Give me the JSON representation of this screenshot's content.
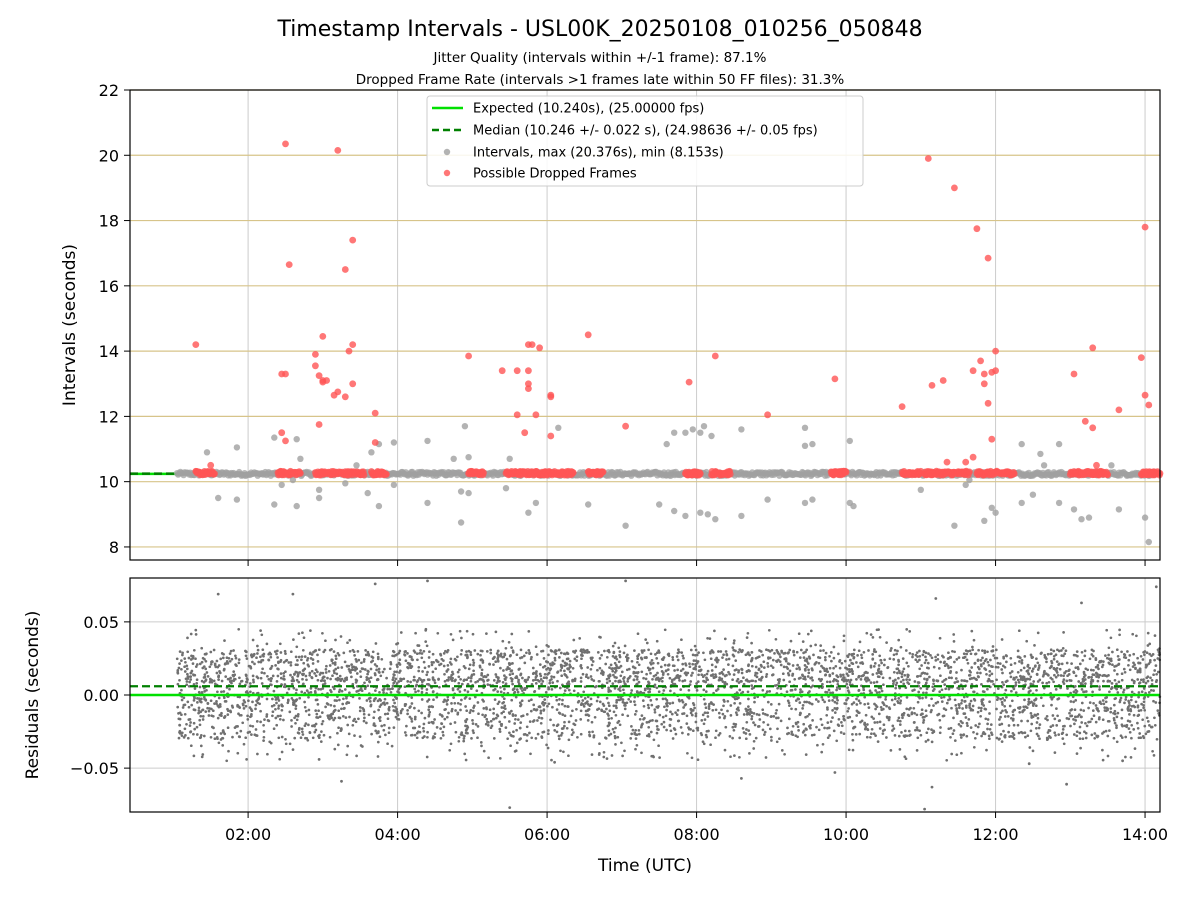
{
  "chart_data": [
    {
      "type": "scatter",
      "title": "Timestamp Intervals - USL00K_20250108_010256_050848",
      "subtitle_lines": [
        "Jitter Quality (intervals within +/-1 frame): 87.1%",
        "Dropped Frame Rate (intervals >1 frames late within 50 FF files): 31.3%"
      ],
      "xlabel": "",
      "ylabel": "Intervals (seconds)",
      "x_unit": "hours UTC",
      "xlim": [
        0.42,
        14.2
      ],
      "ylim": [
        7.6,
        22
      ],
      "yticks": [
        8,
        10,
        12,
        14,
        16,
        18,
        20,
        22
      ],
      "ytick_labels": [
        "8",
        "10",
        "12",
        "14",
        "16",
        "18",
        "20",
        "22"
      ],
      "xticks": [
        2,
        4,
        6,
        8,
        10,
        12,
        14
      ],
      "grid": true,
      "grid_x_color": "#cccccc",
      "grid_y_color": "#d7c48a",
      "legend_placement": "upper-center",
      "expected_line": {
        "y": 10.24,
        "color": "#00e000"
      },
      "median_line": {
        "y": 10.246,
        "color": "#008000",
        "style": "dashed"
      },
      "legend": [
        {
          "label": "Expected (10.240s), (25.00000 fps)",
          "kind": "solid-line",
          "color": "#00e000"
        },
        {
          "label": "Median (10.246 +/- 0.022 s), (24.98636 +/- 0.05 fps)",
          "kind": "dashed-line",
          "color": "#008000"
        },
        {
          "label": "Intervals, max (20.376s), min (8.153s)",
          "kind": "marker",
          "color": "#a0a0a0"
        },
        {
          "label": "Possible Dropped Frames",
          "kind": "marker",
          "color": "#ff5555"
        }
      ],
      "series": [
        {
          "role": "intervals",
          "color": "#a0a0a0",
          "x_range": [
            1.05,
            14.15
          ],
          "baseline": 10.24,
          "outliers": [
            [
              1.45,
              10.9
            ],
            [
              1.6,
              9.5
            ],
            [
              1.85,
              11.05
            ],
            [
              1.85,
              9.45
            ],
            [
              2.35,
              9.3
            ],
            [
              2.35,
              11.35
            ],
            [
              2.45,
              9.9
            ],
            [
              2.6,
              10.05
            ],
            [
              2.65,
              11.3
            ],
            [
              2.65,
              9.25
            ],
            [
              2.7,
              10.7
            ],
            [
              2.95,
              9.5
            ],
            [
              2.95,
              9.75
            ],
            [
              3.3,
              9.95
            ],
            [
              3.45,
              10.5
            ],
            [
              3.6,
              9.65
            ],
            [
              3.65,
              10.9
            ],
            [
              3.75,
              9.25
            ],
            [
              3.75,
              11.15
            ],
            [
              3.95,
              11.2
            ],
            [
              3.95,
              9.9
            ],
            [
              4.4,
              11.25
            ],
            [
              4.4,
              9.35
            ],
            [
              4.75,
              10.7
            ],
            [
              4.85,
              9.7
            ],
            [
              4.85,
              8.75
            ],
            [
              4.9,
              11.7
            ],
            [
              4.95,
              10.75
            ],
            [
              4.95,
              9.65
            ],
            [
              5.45,
              9.8
            ],
            [
              5.5,
              10.7
            ],
            [
              5.75,
              9.05
            ],
            [
              5.85,
              9.35
            ],
            [
              6.15,
              11.65
            ],
            [
              6.55,
              9.3
            ],
            [
              7.05,
              8.65
            ],
            [
              7.5,
              9.3
            ],
            [
              7.6,
              11.15
            ],
            [
              7.7,
              11.5
            ],
            [
              7.7,
              9.1
            ],
            [
              7.85,
              11.5
            ],
            [
              7.85,
              8.95
            ],
            [
              7.95,
              11.6
            ],
            [
              8.05,
              11.5
            ],
            [
              8.05,
              9.05
            ],
            [
              8.1,
              11.7
            ],
            [
              8.15,
              9.0
            ],
            [
              8.2,
              11.4
            ],
            [
              8.25,
              8.85
            ],
            [
              8.6,
              11.6
            ],
            [
              8.6,
              8.95
            ],
            [
              8.95,
              9.45
            ],
            [
              9.45,
              11.65
            ],
            [
              9.45,
              11.1
            ],
            [
              9.45,
              9.35
            ],
            [
              9.55,
              9.45
            ],
            [
              9.55,
              11.15
            ],
            [
              10.05,
              11.25
            ],
            [
              10.05,
              9.35
            ],
            [
              10.1,
              9.25
            ],
            [
              11.0,
              9.75
            ],
            [
              11.45,
              8.65
            ],
            [
              11.6,
              9.9
            ],
            [
              11.65,
              10.05
            ],
            [
              11.85,
              8.8
            ],
            [
              11.95,
              9.2
            ],
            [
              12.0,
              9.05
            ],
            [
              12.35,
              11.15
            ],
            [
              12.35,
              9.35
            ],
            [
              12.5,
              9.6
            ],
            [
              12.6,
              10.85
            ],
            [
              12.65,
              10.5
            ],
            [
              12.85,
              11.15
            ],
            [
              12.85,
              9.35
            ],
            [
              13.05,
              9.15
            ],
            [
              13.15,
              8.85
            ],
            [
              13.25,
              8.9
            ],
            [
              13.55,
              10.5
            ],
            [
              13.65,
              9.15
            ],
            [
              14.0,
              8.9
            ],
            [
              14.05,
              8.15
            ]
          ]
        },
        {
          "role": "possible-dropped-frames",
          "color": "#ff5555",
          "clusters": [
            [
              1.3,
              1.55
            ],
            [
              2.4,
              2.7
            ],
            [
              2.9,
              3.55
            ],
            [
              3.65,
              3.85
            ],
            [
              4.95,
              5.15
            ],
            [
              5.45,
              6.35
            ],
            [
              6.55,
              6.75
            ],
            [
              7.85,
              8.05
            ],
            [
              8.2,
              8.45
            ],
            [
              9.8,
              10.0
            ],
            [
              10.75,
              11.0
            ],
            [
              11.05,
              11.65
            ],
            [
              11.75,
              12.25
            ],
            [
              13.0,
              13.5
            ],
            [
              13.95,
              14.2
            ]
          ],
          "cluster_y": 10.26,
          "outliers": [
            [
              1.3,
              14.2
            ],
            [
              1.5,
              10.5
            ],
            [
              2.45,
              13.3
            ],
            [
              2.45,
              11.5
            ],
            [
              2.5,
              11.25
            ],
            [
              2.5,
              13.3
            ],
            [
              2.5,
              20.35
            ],
            [
              2.55,
              16.65
            ],
            [
              2.9,
              13.9
            ],
            [
              2.9,
              13.55
            ],
            [
              2.95,
              13.25
            ],
            [
              2.95,
              11.75
            ],
            [
              3.0,
              13.1
            ],
            [
              3.0,
              13.05
            ],
            [
              3.0,
              14.45
            ],
            [
              3.05,
              13.1
            ],
            [
              3.15,
              12.65
            ],
            [
              3.2,
              12.75
            ],
            [
              3.2,
              20.15
            ],
            [
              3.3,
              12.6
            ],
            [
              3.3,
              16.5
            ],
            [
              3.35,
              14.0
            ],
            [
              3.4,
              17.4
            ],
            [
              3.4,
              14.2
            ],
            [
              3.4,
              13.0
            ],
            [
              3.7,
              12.1
            ],
            [
              3.7,
              11.2
            ],
            [
              4.95,
              13.85
            ],
            [
              5.4,
              13.4
            ],
            [
              5.6,
              13.4
            ],
            [
              5.6,
              12.05
            ],
            [
              5.7,
              11.5
            ],
            [
              5.75,
              14.2
            ],
            [
              5.75,
              13.4
            ],
            [
              5.75,
              13.0
            ],
            [
              5.75,
              12.85
            ],
            [
              5.8,
              14.2
            ],
            [
              5.85,
              12.05
            ],
            [
              5.9,
              14.1
            ],
            [
              6.05,
              12.6
            ],
            [
              6.05,
              12.65
            ],
            [
              6.05,
              11.4
            ],
            [
              6.55,
              14.5
            ],
            [
              7.05,
              11.7
            ],
            [
              7.9,
              13.05
            ],
            [
              8.25,
              13.85
            ],
            [
              8.95,
              12.05
            ],
            [
              9.85,
              13.15
            ],
            [
              10.75,
              12.3
            ],
            [
              11.1,
              19.9
            ],
            [
              11.15,
              12.95
            ],
            [
              11.3,
              13.1
            ],
            [
              11.35,
              10.6
            ],
            [
              11.45,
              19.0
            ],
            [
              11.6,
              10.6
            ],
            [
              11.7,
              13.4
            ],
            [
              11.7,
              10.75
            ],
            [
              11.75,
              17.75
            ],
            [
              11.8,
              13.7
            ],
            [
              11.85,
              13.0
            ],
            [
              11.85,
              13.3
            ],
            [
              11.9,
              12.4
            ],
            [
              11.9,
              16.85
            ],
            [
              11.95,
              13.35
            ],
            [
              11.95,
              11.3
            ],
            [
              12.0,
              13.4
            ],
            [
              12.0,
              14.0
            ],
            [
              13.05,
              13.3
            ],
            [
              13.2,
              11.85
            ],
            [
              13.3,
              14.1
            ],
            [
              13.3,
              11.65
            ],
            [
              13.35,
              10.5
            ],
            [
              13.65,
              12.2
            ],
            [
              13.95,
              13.8
            ],
            [
              14.0,
              17.8
            ],
            [
              14.0,
              12.65
            ],
            [
              14.05,
              12.35
            ]
          ]
        }
      ]
    },
    {
      "type": "scatter",
      "xlabel": "Time (UTC)",
      "ylabel": "Residuals (seconds)",
      "x_unit": "hours UTC",
      "xlim": [
        0.42,
        14.2
      ],
      "ylim": [
        -0.08,
        0.08
      ],
      "yticks": [
        0.05,
        0.0,
        -0.05
      ],
      "ytick_labels": [
        "0.05",
        "0.00",
        "−0.05"
      ],
      "xticks": [
        2,
        4,
        6,
        8,
        10,
        12,
        14
      ],
      "xtick_labels": [
        "02:00",
        "04:00",
        "06:00",
        "08:00",
        "10:00",
        "12:00",
        "14:00"
      ],
      "grid": true,
      "expected_line": {
        "y": 0.0,
        "color": "#00e000"
      },
      "median_line": {
        "y": 0.006,
        "color": "#008000",
        "style": "dashed"
      },
      "series": [
        {
          "role": "residuals",
          "color": "#707070",
          "x_range": [
            1.05,
            14.2
          ],
          "y_spread": [
            -0.045,
            0.045
          ],
          "approx_point_count": 4600,
          "outliers": [
            [
              1.6,
              0.069
            ],
            [
              2.6,
              0.069
            ],
            [
              3.7,
              0.076
            ],
            [
              3.25,
              -0.059
            ],
            [
              4.4,
              0.078
            ],
            [
              5.5,
              -0.077
            ],
            [
              6.1,
              -0.046
            ],
            [
              7.05,
              0.078
            ],
            [
              8.6,
              -0.057
            ],
            [
              9.85,
              -0.053
            ],
            [
              11.2,
              0.066
            ],
            [
              11.15,
              -0.063
            ],
            [
              11.05,
              -0.078
            ],
            [
              12.45,
              -0.047
            ],
            [
              13.15,
              0.063
            ],
            [
              12.95,
              -0.061
            ],
            [
              14.15,
              0.074
            ],
            [
              13.7,
              -0.045
            ],
            [
              2.95,
              -0.044
            ]
          ]
        }
      ]
    }
  ]
}
